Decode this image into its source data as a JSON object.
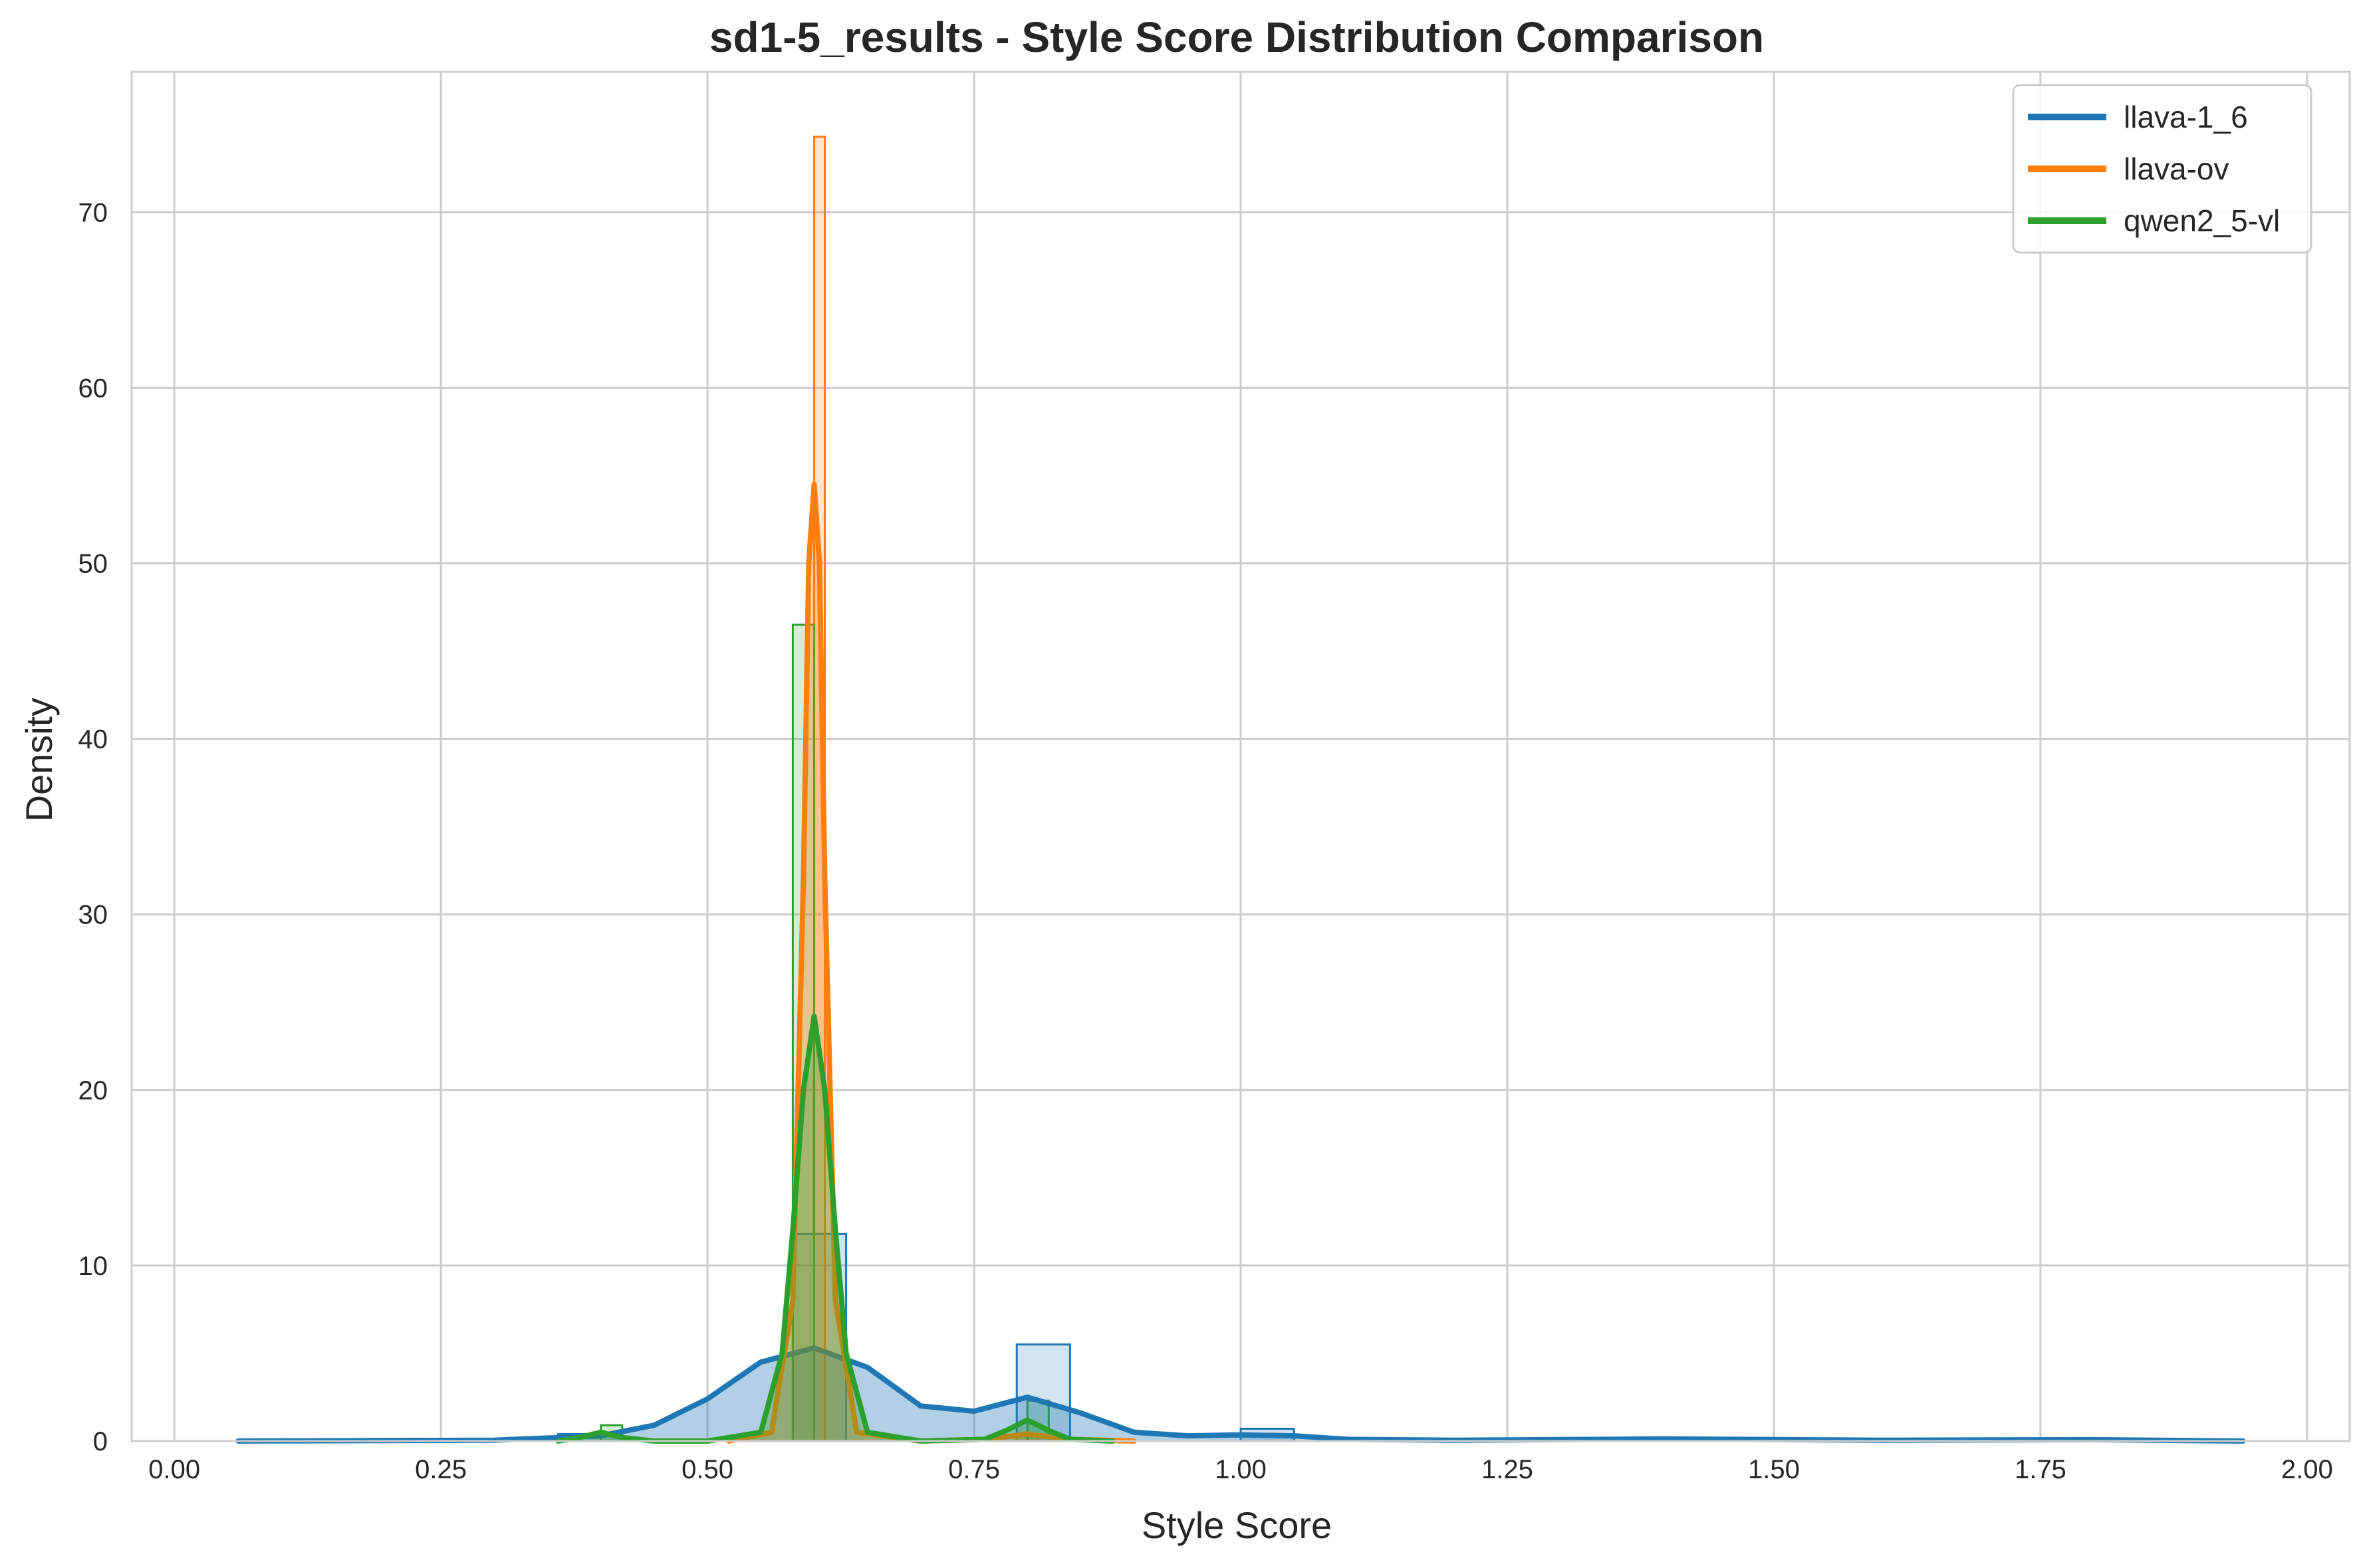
{
  "chart_data": {
    "type": "histogram-kde",
    "title": "sd1-5_results - Style Score Distribution Comparison",
    "xlabel": "Style Score",
    "ylabel": "Density",
    "xlim": [
      -0.04,
      2.04
    ],
    "ylim": [
      0,
      78
    ],
    "x_ticks": [
      0.0,
      0.25,
      0.5,
      0.75,
      1.0,
      1.25,
      1.5,
      1.75,
      2.0
    ],
    "x_tick_labels": [
      "0.00",
      "0.25",
      "0.50",
      "0.75",
      "1.00",
      "1.25",
      "1.50",
      "1.75",
      "2.00"
    ],
    "y_ticks": [
      0,
      10,
      20,
      30,
      40,
      50,
      60,
      70
    ],
    "y_tick_labels": [
      "0",
      "10",
      "20",
      "30",
      "40",
      "50",
      "60",
      "70"
    ],
    "grid": true,
    "legend_position": "top-right",
    "series": [
      {
        "name": "llava-1_6",
        "color": "#1f77b4",
        "histogram": [
          {
            "x0": 0.36,
            "x1": 0.42,
            "density": 0.4
          },
          {
            "x0": 0.58,
            "x1": 0.63,
            "density": 11.8
          },
          {
            "x0": 0.79,
            "x1": 0.84,
            "density": 5.5
          },
          {
            "x0": 1.0,
            "x1": 1.05,
            "density": 0.7
          },
          {
            "x0": 1.37,
            "x1": 1.42,
            "density": 0.2
          }
        ],
        "kde": {
          "x": [
            0.06,
            0.3,
            0.4,
            0.45,
            0.5,
            0.55,
            0.6,
            0.65,
            0.7,
            0.75,
            0.8,
            0.85,
            0.9,
            0.95,
            1.0,
            1.05,
            1.1,
            1.2,
            1.4,
            1.6,
            1.8,
            1.94
          ],
          "y": [
            0.0,
            0.05,
            0.3,
            0.9,
            2.4,
            4.5,
            5.3,
            4.2,
            2.0,
            1.7,
            2.5,
            1.6,
            0.5,
            0.3,
            0.35,
            0.3,
            0.1,
            0.05,
            0.12,
            0.05,
            0.08,
            0.0
          ]
        }
      },
      {
        "name": "llava-ov",
        "color": "#ff7f0e",
        "histogram": [
          {
            "x0": 0.6,
            "x1": 0.61,
            "density": 74.3
          },
          {
            "x0": 0.79,
            "x1": 0.81,
            "density": 0.4
          }
        ],
        "kde": {
          "x": [
            0.52,
            0.56,
            0.58,
            0.59,
            0.595,
            0.6,
            0.605,
            0.61,
            0.62,
            0.64,
            0.7,
            0.76,
            0.8,
            0.84,
            0.9
          ],
          "y": [
            0.0,
            0.5,
            8.0,
            32.0,
            50.0,
            54.5,
            50.0,
            32.0,
            8.0,
            0.5,
            0.0,
            0.1,
            0.4,
            0.1,
            0.0
          ]
        }
      },
      {
        "name": "qwen2_5-vl",
        "color": "#2ca02c",
        "histogram": [
          {
            "x0": 0.4,
            "x1": 0.42,
            "density": 0.9
          },
          {
            "x0": 0.58,
            "x1": 0.6,
            "density": 46.5
          },
          {
            "x0": 0.8,
            "x1": 0.82,
            "density": 2.3
          }
        ],
        "kde": {
          "x": [
            0.36,
            0.38,
            0.4,
            0.42,
            0.45,
            0.5,
            0.55,
            0.57,
            0.58,
            0.59,
            0.6,
            0.61,
            0.62,
            0.63,
            0.65,
            0.7,
            0.76,
            0.78,
            0.8,
            0.82,
            0.84,
            0.88
          ],
          "y": [
            0.0,
            0.2,
            0.5,
            0.2,
            0.0,
            0.0,
            0.5,
            5.0,
            12.0,
            20.0,
            24.2,
            20.0,
            12.0,
            5.0,
            0.5,
            0.0,
            0.1,
            0.6,
            1.2,
            0.6,
            0.1,
            0.0
          ]
        }
      }
    ]
  }
}
